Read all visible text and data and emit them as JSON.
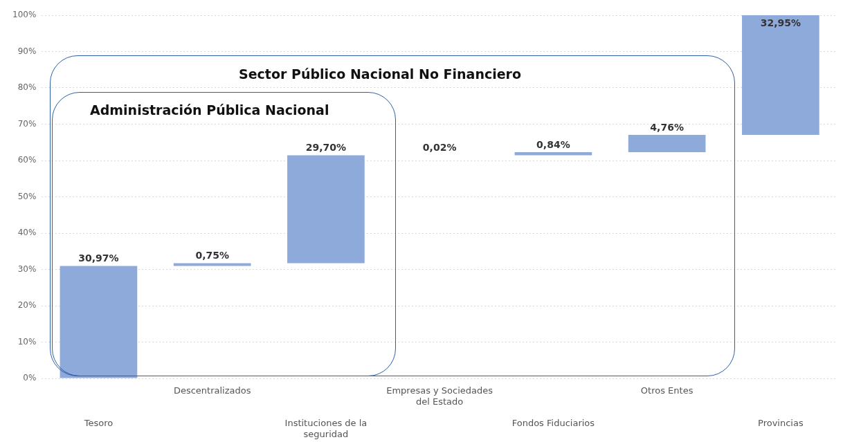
{
  "chart_data": {
    "type": "bar",
    "categories": [
      "Tesoro",
      "Descentralizados",
      "Instituciones de la seguridad",
      "Empresas y Sociedades del Estado",
      "Fondos Fiduciarios",
      "Otros Entes",
      "Provincias"
    ],
    "values": [
      30.97,
      0.75,
      29.7,
      0.02,
      0.84,
      4.76,
      32.95
    ],
    "base": [
      0,
      30.97,
      31.72,
      61.42,
      61.44,
      62.28,
      67.04
    ],
    "value_labels": [
      "30,97%",
      "0,75%",
      "29,70%",
      "0,02%",
      "0,84%",
      "4,76%",
      "32,95%"
    ],
    "color": "#8eaadb",
    "ylim": [
      0,
      100
    ],
    "yticks": [
      {
        "value": 0,
        "label": "0%"
      },
      {
        "value": 10,
        "label": "10%"
      },
      {
        "value": 20,
        "label": "20%"
      },
      {
        "value": 30,
        "label": "30%"
      },
      {
        "value": 40,
        "label": "40%"
      },
      {
        "value": 50,
        "label": "50%"
      },
      {
        "value": 60,
        "label": "60%"
      },
      {
        "value": 70,
        "label": "70%"
      },
      {
        "value": 80,
        "label": "80%"
      },
      {
        "value": 90,
        "label": "90%"
      },
      {
        "value": 100,
        "label": "100%"
      }
    ],
    "grid": "y",
    "annotations": [
      "Sector Público Nacional No Financiero",
      "Administración Pública Nacional"
    ]
  }
}
